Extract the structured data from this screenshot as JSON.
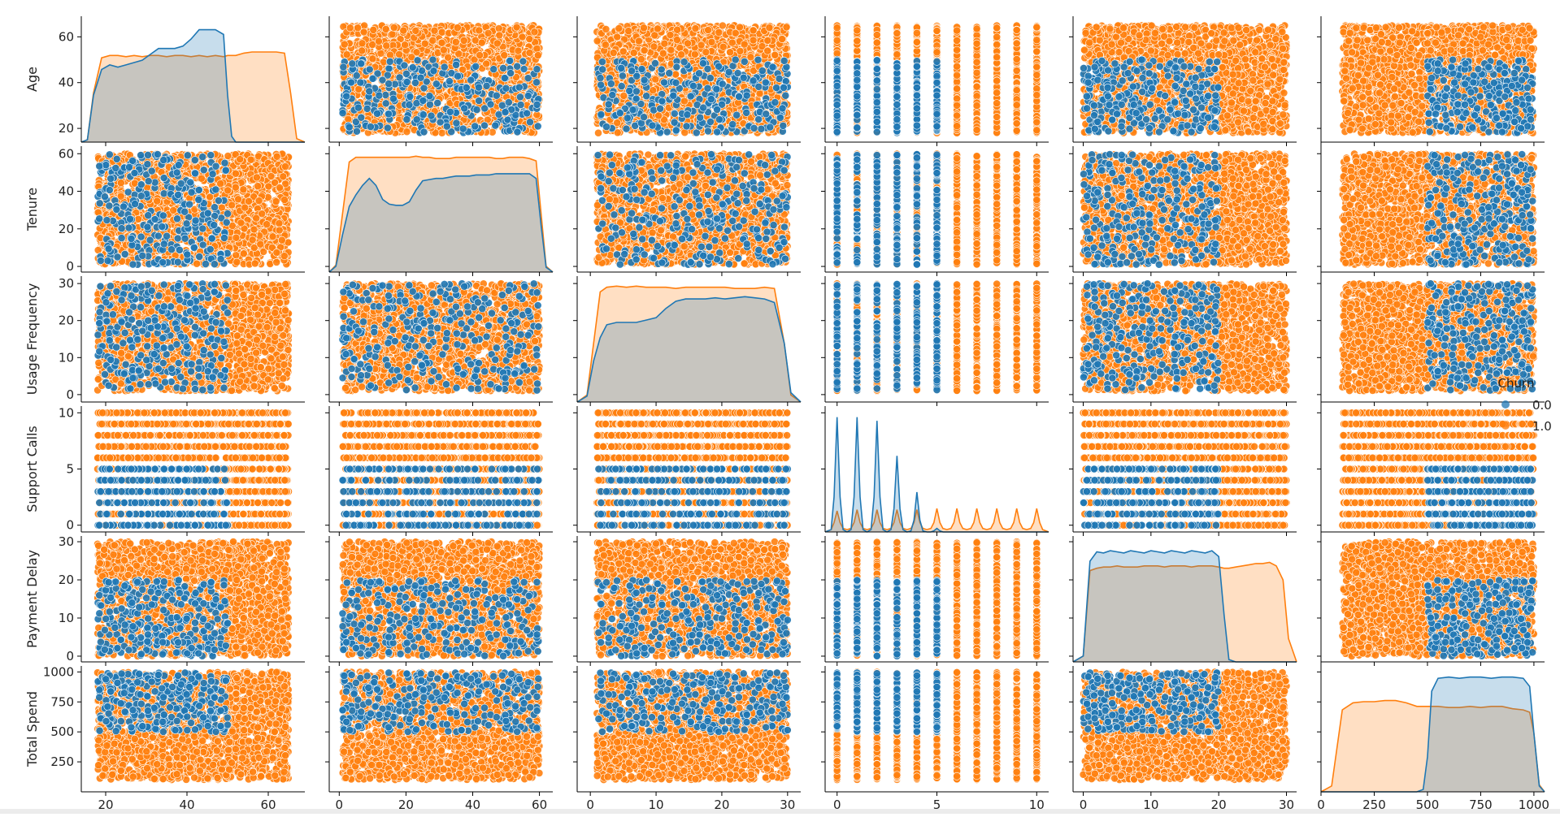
{
  "chart_data": {
    "type": "pairplot",
    "variables": [
      "Age",
      "Tenure",
      "Usage Frequency",
      "Support Calls",
      "Payment Delay",
      "Total Spend"
    ],
    "ranges": {
      "Age": [
        18,
        65
      ],
      "Tenure": [
        1,
        60
      ],
      "Usage Frequency": [
        1,
        30
      ],
      "Support Calls": [
        0,
        10
      ],
      "Payment Delay": [
        0,
        30
      ],
      "Total Spend": [
        100,
        1000
      ]
    },
    "axis_limits": {
      "Age": [
        14,
        69
      ],
      "Tenure": [
        -3,
        64
      ],
      "Usage Frequency": [
        -2,
        32
      ],
      "Support Calls": [
        -0.6,
        10.6
      ],
      "Payment Delay": [
        -1.5,
        31.5
      ],
      "Total Spend": [
        0,
        1050
      ]
    },
    "ticks": {
      "Age": [
        20,
        40,
        60
      ],
      "Tenure": [
        0,
        20,
        40,
        60
      ],
      "Usage Frequency": [
        0,
        10,
        20,
        30
      ],
      "Support Calls": [
        0,
        5,
        10
      ],
      "Payment Delay": [
        0,
        10,
        20,
        30
      ],
      "Total Spend": [
        0,
        250,
        500,
        750,
        1000
      ]
    },
    "y_ticks": {
      "Age": [
        20,
        40,
        60
      ],
      "Tenure": [
        0,
        20,
        40,
        60
      ],
      "Usage Frequency": [
        0,
        10,
        20,
        30
      ],
      "Support Calls": [
        0,
        5,
        10
      ],
      "Payment Delay": [
        0,
        10,
        20,
        30
      ],
      "Total Spend": [
        250,
        500,
        750,
        1000
      ]
    },
    "churn_rules": {
      "Age": 50,
      "Support Calls": 5,
      "Payment Delay": 20,
      "Total Spend": 500
    },
    "legend": {
      "title": "Churn",
      "placement": "center-right",
      "entries": [
        {
          "label": "0.0",
          "color": "#1f77b4"
        },
        {
          "label": "1.0",
          "color": "#ff7f0e"
        }
      ]
    },
    "kde_diagonal": {
      "Age": {
        "x": [
          14,
          15.5,
          17,
          19,
          21,
          23,
          25,
          27,
          29,
          31,
          33,
          35,
          37,
          39,
          41,
          43,
          45,
          47,
          49,
          50,
          51,
          52,
          54,
          56,
          58,
          60,
          62,
          64,
          65.5,
          67,
          69
        ],
        "churn_0": [
          0,
          0.02,
          0.4,
          0.62,
          0.66,
          0.64,
          0.66,
          0.68,
          0.7,
          0.75,
          0.8,
          0.8,
          0.8,
          0.82,
          0.88,
          0.96,
          0.96,
          0.96,
          0.92,
          0.4,
          0.05,
          0,
          0,
          0,
          0,
          0,
          0,
          0,
          0,
          0,
          0
        ],
        "churn_1": [
          0,
          0.02,
          0.42,
          0.72,
          0.74,
          0.74,
          0.73,
          0.74,
          0.73,
          0.74,
          0.74,
          0.73,
          0.74,
          0.74,
          0.73,
          0.74,
          0.73,
          0.74,
          0.73,
          0.74,
          0.74,
          0.74,
          0.76,
          0.77,
          0.77,
          0.77,
          0.77,
          0.76,
          0.42,
          0.03,
          0
        ]
      },
      "Tenure": {
        "x": [
          -3,
          -1,
          1,
          3,
          5,
          7,
          9,
          11,
          13,
          15,
          17,
          19,
          21,
          23,
          25,
          27,
          29,
          31,
          33,
          35,
          37,
          39,
          41,
          43,
          45,
          47,
          49,
          51,
          53,
          55,
          57,
          59,
          60.5,
          62,
          64
        ],
        "churn_0": [
          0,
          0.05,
          0.32,
          0.56,
          0.66,
          0.74,
          0.8,
          0.74,
          0.62,
          0.58,
          0.57,
          0.57,
          0.6,
          0.7,
          0.78,
          0.79,
          0.8,
          0.8,
          0.81,
          0.82,
          0.82,
          0.82,
          0.83,
          0.83,
          0.83,
          0.84,
          0.84,
          0.84,
          0.84,
          0.84,
          0.84,
          0.8,
          0.4,
          0.04,
          0
        ],
        "churn_1": [
          0,
          0.06,
          0.5,
          0.94,
          0.98,
          0.98,
          0.98,
          0.98,
          0.98,
          0.98,
          0.98,
          0.98,
          0.98,
          0.99,
          0.98,
          0.98,
          0.97,
          0.97,
          0.97,
          0.98,
          0.98,
          0.98,
          0.98,
          0.98,
          0.98,
          0.97,
          0.97,
          0.98,
          0.98,
          0.98,
          0.97,
          0.95,
          0.5,
          0.05,
          0
        ]
      },
      "Usage Frequency": {
        "x": [
          -2,
          -0.5,
          0.5,
          1.5,
          2.5,
          4,
          5.5,
          7,
          8.5,
          10,
          11.5,
          13,
          14.5,
          16,
          17.5,
          19,
          20.5,
          22,
          23.5,
          25,
          26.5,
          28,
          29.5,
          30.5,
          32
        ],
        "churn_0": [
          0,
          0.05,
          0.35,
          0.55,
          0.66,
          0.68,
          0.68,
          0.68,
          0.7,
          0.72,
          0.8,
          0.86,
          0.88,
          0.88,
          0.88,
          0.89,
          0.88,
          0.89,
          0.9,
          0.89,
          0.88,
          0.85,
          0.5,
          0.08,
          0
        ],
        "churn_1": [
          0,
          0.06,
          0.5,
          0.94,
          0.98,
          0.99,
          0.98,
          0.99,
          0.98,
          0.98,
          0.98,
          0.97,
          0.98,
          0.98,
          0.98,
          0.98,
          0.98,
          0.97,
          0.97,
          0.97,
          0.98,
          0.97,
          0.5,
          0.06,
          0
        ]
      },
      "Support Calls": {
        "x": [
          -0.6,
          -0.3,
          -0.15,
          0,
          0.15,
          0.3,
          0.5,
          0.7,
          0.85,
          1,
          1.15,
          1.3,
          1.5,
          1.7,
          1.85,
          2,
          2.15,
          2.3,
          2.5,
          2.7,
          2.85,
          3,
          3.15,
          3.3,
          3.5,
          3.7,
          3.85,
          4,
          4.15,
          4.3,
          4.5,
          4.7,
          4.85,
          5,
          5.15,
          5.3,
          5.5,
          5.7,
          5.85,
          6,
          6.15,
          6.3,
          6.5,
          6.7,
          6.85,
          7,
          7.15,
          7.3,
          7.5,
          7.7,
          7.85,
          8,
          8.15,
          8.3,
          8.5,
          8.7,
          8.85,
          9,
          9.15,
          9.3,
          9.5,
          9.7,
          9.85,
          10,
          10.15,
          10.3,
          10.6
        ],
        "churn_0": [
          0,
          0.02,
          0.3,
          0.98,
          0.3,
          0.02,
          0,
          0.02,
          0.3,
          0.98,
          0.3,
          0.02,
          0,
          0.02,
          0.3,
          0.95,
          0.3,
          0.02,
          0,
          0.02,
          0.2,
          0.65,
          0.2,
          0.02,
          0,
          0.01,
          0.1,
          0.34,
          0.1,
          0.01,
          0,
          0,
          0.01,
          0.03,
          0.01,
          0,
          0,
          0,
          0,
          0,
          0,
          0,
          0,
          0,
          0,
          0,
          0,
          0,
          0,
          0,
          0,
          0,
          0,
          0,
          0,
          0,
          0,
          0,
          0,
          0,
          0,
          0,
          0,
          0,
          0,
          0,
          0
        ],
        "churn_1": [
          0,
          0.02,
          0.08,
          0.18,
          0.08,
          0.03,
          0.02,
          0.03,
          0.08,
          0.19,
          0.08,
          0.03,
          0.02,
          0.03,
          0.08,
          0.19,
          0.08,
          0.03,
          0.02,
          0.03,
          0.08,
          0.19,
          0.08,
          0.03,
          0.02,
          0.03,
          0.08,
          0.19,
          0.08,
          0.03,
          0.02,
          0.03,
          0.08,
          0.2,
          0.08,
          0.03,
          0.02,
          0.03,
          0.08,
          0.2,
          0.08,
          0.03,
          0.02,
          0.03,
          0.08,
          0.2,
          0.08,
          0.03,
          0.02,
          0.03,
          0.08,
          0.2,
          0.08,
          0.03,
          0.02,
          0.03,
          0.08,
          0.2,
          0.08,
          0.03,
          0.02,
          0.03,
          0.08,
          0.2,
          0.08,
          0.02,
          0
        ]
      },
      "Payment Delay": {
        "x": [
          -1.5,
          0,
          1,
          2,
          3,
          4,
          5,
          6,
          7,
          8,
          9,
          10,
          11,
          12,
          13,
          14,
          15,
          16,
          17,
          18,
          19,
          20,
          20.8,
          21.5,
          22.5,
          23.5,
          24.5,
          25.5,
          26.5,
          27.5,
          28.5,
          29.5,
          30.3,
          31.5
        ],
        "churn_0": [
          0,
          0.05,
          0.86,
          0.94,
          0.93,
          0.95,
          0.94,
          0.93,
          0.95,
          0.94,
          0.93,
          0.95,
          0.94,
          0.93,
          0.95,
          0.94,
          0.93,
          0.95,
          0.94,
          0.93,
          0.95,
          0.9,
          0.4,
          0.02,
          0,
          0,
          0,
          0,
          0,
          0,
          0,
          0,
          0,
          0
        ],
        "churn_1": [
          0,
          0.05,
          0.78,
          0.8,
          0.81,
          0.81,
          0.82,
          0.81,
          0.81,
          0.81,
          0.82,
          0.82,
          0.82,
          0.81,
          0.82,
          0.82,
          0.82,
          0.81,
          0.82,
          0.82,
          0.82,
          0.81,
          0.8,
          0.8,
          0.81,
          0.82,
          0.83,
          0.84,
          0.84,
          0.85,
          0.82,
          0.7,
          0.2,
          0
        ]
      },
      "Total Spend": {
        "x": [
          0,
          50,
          100,
          150,
          200,
          250,
          300,
          350,
          400,
          450,
          480,
          500,
          520,
          550,
          600,
          650,
          700,
          750,
          800,
          850,
          900,
          950,
          980,
          1000,
          1025,
          1050
        ],
        "churn_0": [
          0,
          0,
          0,
          0,
          0,
          0,
          0,
          0,
          0,
          0,
          0.02,
          0.3,
          0.86,
          0.97,
          0.98,
          0.97,
          0.98,
          0.98,
          0.97,
          0.98,
          0.98,
          0.97,
          0.9,
          0.5,
          0.05,
          0
        ],
        "churn_1": [
          0,
          0.05,
          0.7,
          0.76,
          0.77,
          0.77,
          0.78,
          0.78,
          0.76,
          0.73,
          0.73,
          0.73,
          0.73,
          0.73,
          0.72,
          0.72,
          0.73,
          0.72,
          0.73,
          0.73,
          0.71,
          0.7,
          0.68,
          0.5,
          0.06,
          0
        ]
      }
    }
  }
}
